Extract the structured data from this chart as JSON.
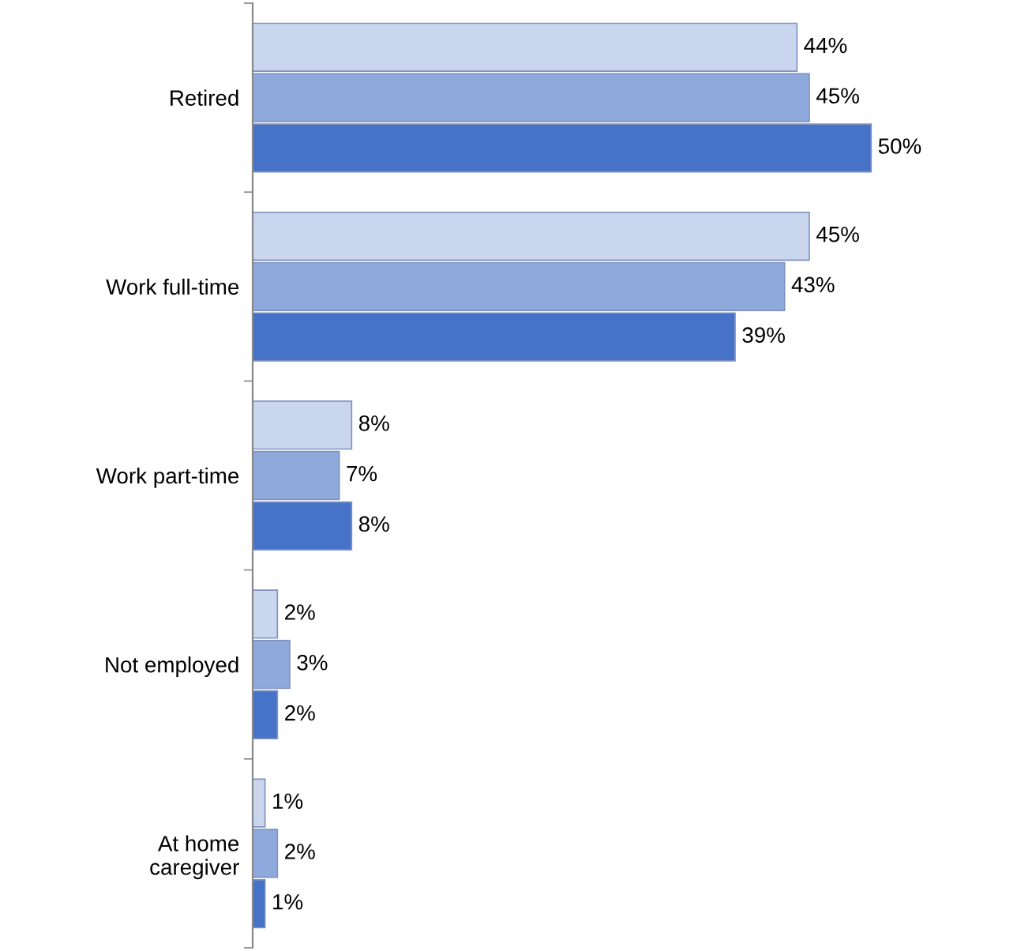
{
  "chart_data": {
    "type": "bar",
    "orientation": "horizontal",
    "categories": [
      "Retired",
      "Work full-time",
      "Work part-time",
      "Not employed",
      "At home\ncaregiver"
    ],
    "series": [
      {
        "color": "#c9d6ee",
        "values": [
          44,
          45,
          8,
          2,
          1
        ],
        "value_labels": [
          "44%",
          "45%",
          "8%",
          "2%",
          "1%"
        ]
      },
      {
        "color": "#8ea9dc",
        "values": [
          45,
          43,
          7,
          3,
          2
        ],
        "value_labels": [
          "45%",
          "43%",
          "7%",
          "3%",
          "2%"
        ]
      },
      {
        "color": "#4673c8",
        "values": [
          50,
          39,
          8,
          2,
          1
        ],
        "value_labels": [
          "50%",
          "39%",
          "8%",
          "2%",
          "1%"
        ]
      }
    ],
    "grid": false,
    "legend": false
  }
}
